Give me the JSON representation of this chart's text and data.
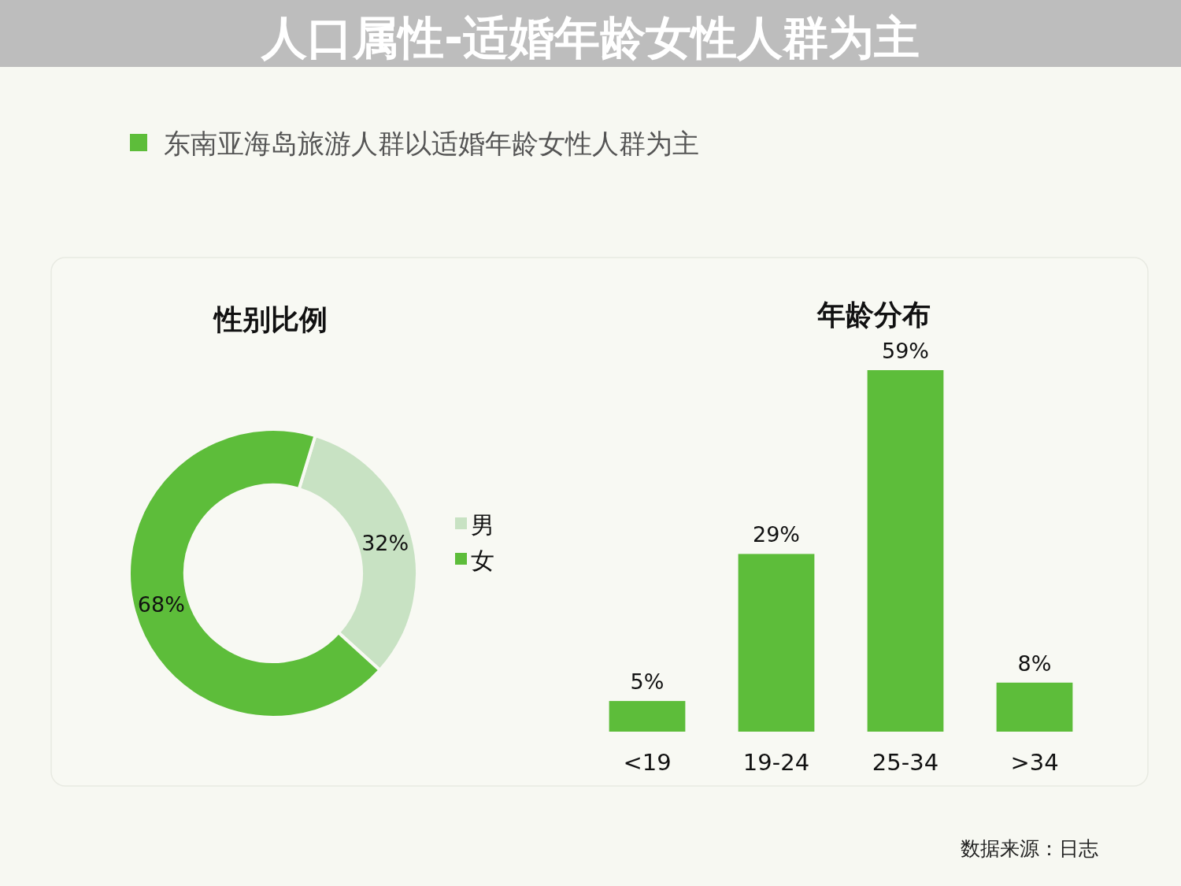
{
  "chart_data": [
    {
      "type": "donut",
      "title": "人口属性-适婚年龄女性人群为主",
      "subtitle": "东南亚海岛旅游人群以适婚年龄女性人群为主",
      "legend_title": "性别比例",
      "categories": [
        "男",
        "女"
      ],
      "values": [
        32,
        68
      ],
      "colors": [
        "#c8e2c3",
        "#5dbd3a"
      ],
      "value_labels": [
        "32%",
        "68%"
      ],
      "legend": "right"
    },
    {
      "type": "bar",
      "title": "年龄分布",
      "categories": [
        "<19",
        "19-24",
        "25-34",
        ">34"
      ],
      "values": [
        5,
        29,
        59,
        8
      ],
      "color": "#5dbd3a",
      "value_labels": [
        "5%",
        "29%",
        "59%",
        "8%"
      ],
      "annotations": [
        "数据来源：日志"
      ]
    }
  ]
}
